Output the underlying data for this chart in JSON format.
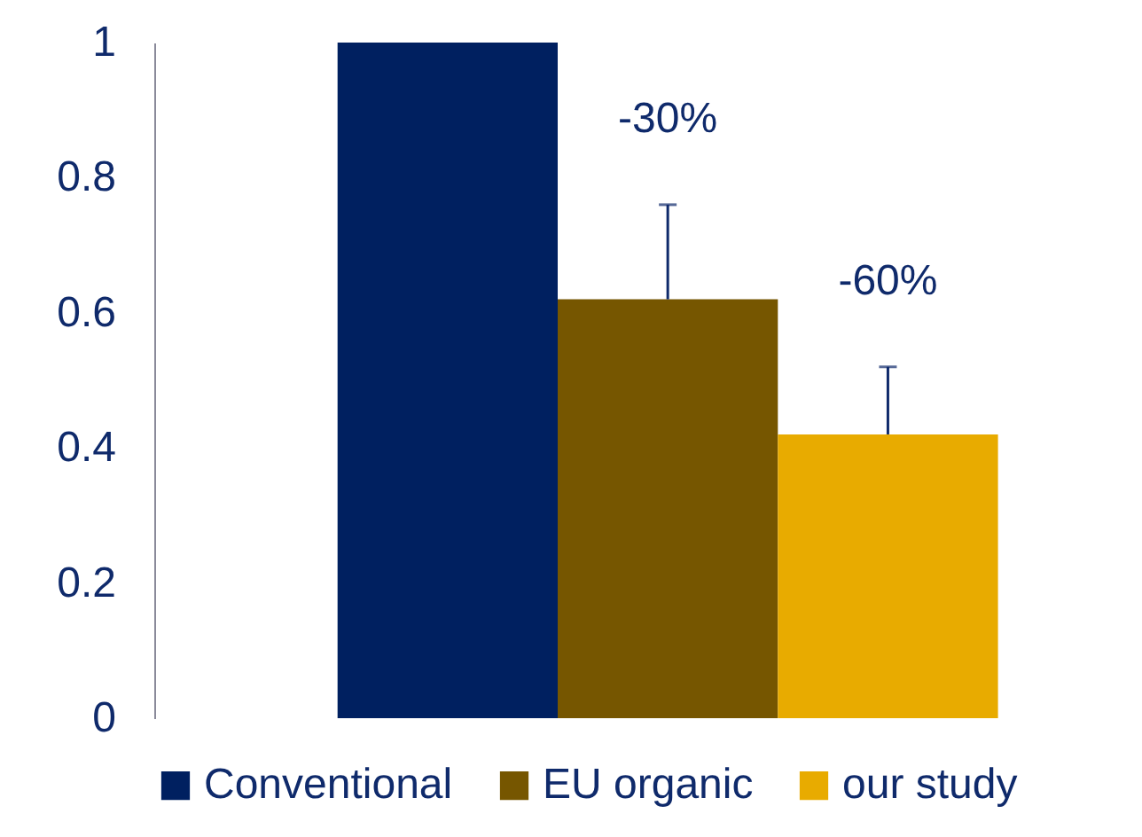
{
  "chart_data": {
    "type": "bar",
    "categories": [
      null
    ],
    "series": [
      {
        "name": "Conventional",
        "color": "#002060",
        "values": [
          1
        ]
      },
      {
        "name": "EU organic",
        "color": "#765600",
        "values": [
          0.62
        ],
        "errors": [
          [
            0.62,
            0.76
          ]
        ]
      },
      {
        "name": "our study",
        "color": "#e8ab00",
        "values": [
          0.42
        ],
        "errors": [
          [
            0.42,
            0.52
          ]
        ]
      }
    ],
    "ylim": [
      0,
      1
    ],
    "yticks": [
      0,
      0.2,
      0.4,
      0.6,
      0.8,
      1
    ],
    "grid": false,
    "legend": "bottom",
    "annotations": [
      "-30%",
      "-60%"
    ]
  }
}
